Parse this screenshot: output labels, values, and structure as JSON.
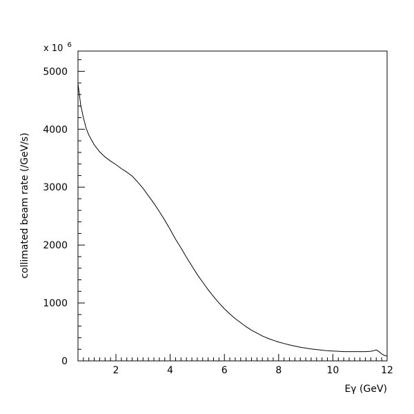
{
  "chart_data": {
    "type": "line",
    "title": "",
    "xlabel": "Eγ (GeV)",
    "ylabel": "collimated beam rate (/GeV/s)",
    "y_multiplier": {
      "base": "x 10",
      "exponent": "6"
    },
    "xlim": [
      0.6,
      12
    ],
    "ylim": [
      0,
      5350
    ],
    "x_ticks": [
      2,
      4,
      6,
      8,
      10,
      12
    ],
    "x_tick_labels": [
      "2",
      "4",
      "6",
      "8",
      "10",
      "12"
    ],
    "y_ticks": [
      0,
      1000,
      2000,
      3000,
      4000,
      5000
    ],
    "y_tick_labels": [
      "0",
      "1000",
      "2000",
      "3000",
      "4000",
      "5000"
    ],
    "grid": false,
    "legend": "none",
    "series": [
      {
        "color": "#000000",
        "x": [
          0.6,
          0.7,
          0.8,
          0.9,
          1.0,
          1.2,
          1.4,
          1.6,
          1.8,
          2.0,
          2.2,
          2.4,
          2.6,
          2.8,
          3.0,
          3.2,
          3.4,
          3.6,
          3.8,
          4.0,
          4.2,
          4.4,
          4.6,
          4.8,
          5.0,
          5.2,
          5.4,
          5.6,
          5.8,
          6.0,
          6.2,
          6.4,
          6.6,
          6.8,
          7.0,
          7.2,
          7.4,
          7.6,
          7.8,
          8.0,
          8.2,
          8.4,
          8.6,
          8.8,
          9.0,
          9.2,
          9.4,
          9.6,
          9.8,
          10.0,
          10.2,
          10.4,
          10.6,
          10.8,
          11.0,
          11.2,
          11.4,
          11.5,
          11.6,
          11.7,
          11.8,
          11.9,
          12.0
        ],
        "y": [
          4790,
          4420,
          4200,
          4020,
          3900,
          3730,
          3610,
          3520,
          3450,
          3390,
          3320,
          3260,
          3190,
          3090,
          2980,
          2850,
          2720,
          2580,
          2430,
          2270,
          2100,
          1950,
          1790,
          1640,
          1490,
          1360,
          1230,
          1110,
          1000,
          900,
          810,
          730,
          660,
          590,
          530,
          480,
          430,
          390,
          355,
          325,
          300,
          275,
          255,
          235,
          220,
          205,
          195,
          185,
          175,
          170,
          165,
          160,
          160,
          160,
          160,
          160,
          165,
          175,
          190,
          160,
          120,
          95,
          80
        ]
      }
    ]
  }
}
